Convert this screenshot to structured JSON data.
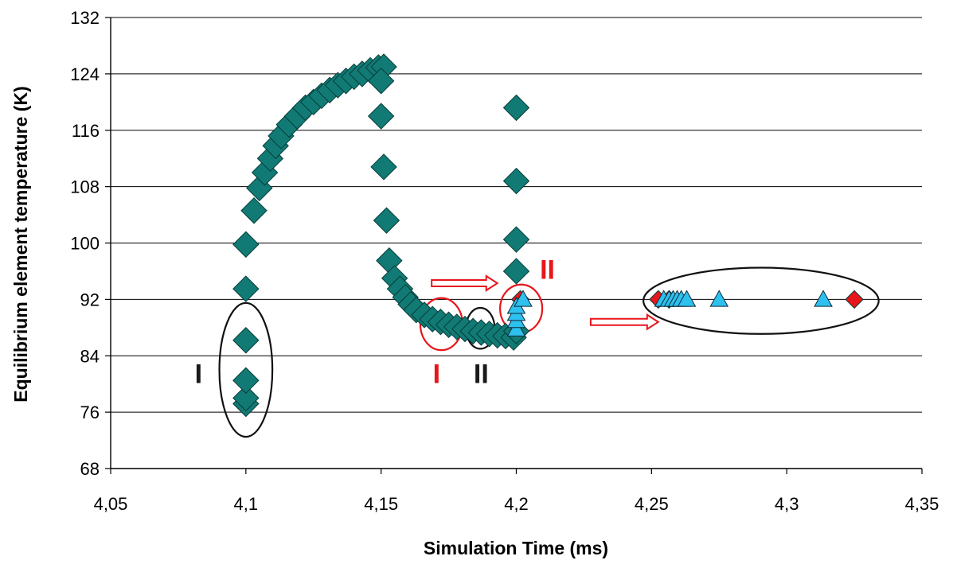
{
  "chart_data": {
    "type": "scatter",
    "title": "",
    "xlabel": "Simulation Time (ms)",
    "ylabel": "Equilibrium element temperature (K)",
    "xlim": [
      4.05,
      4.35
    ],
    "ylim": [
      68,
      132
    ],
    "x_ticks": [
      4.05,
      4.1,
      4.15,
      4.2,
      4.25,
      4.3,
      4.35
    ],
    "x_tick_labels": [
      "4,05",
      "4,1",
      "4,15",
      "4,2",
      "4,25",
      "4,3",
      "4,35"
    ],
    "y_ticks": [
      68,
      76,
      84,
      92,
      100,
      108,
      116,
      124,
      132
    ],
    "y_tick_labels": [
      "68",
      "76",
      "84",
      "92",
      "100",
      "108",
      "116",
      "124",
      "132"
    ],
    "grid": true,
    "legend": "none",
    "series": [
      {
        "marker": "diamond",
        "color": "#117a74",
        "points": [
          [
            4.1,
            77.2
          ],
          [
            4.1,
            78.0
          ],
          [
            4.1,
            80.5
          ],
          [
            4.1,
            86.2
          ],
          [
            4.1,
            93.5
          ],
          [
            4.1,
            99.8
          ],
          [
            4.103,
            104.6
          ],
          [
            4.105,
            107.8
          ],
          [
            4.107,
            110.0
          ],
          [
            4.109,
            112.0
          ],
          [
            4.111,
            113.8
          ],
          [
            4.113,
            115.2
          ],
          [
            4.116,
            116.8
          ],
          [
            4.119,
            118.0
          ],
          [
            4.122,
            119.2
          ],
          [
            4.125,
            120.0
          ],
          [
            4.128,
            120.9
          ],
          [
            4.131,
            121.7
          ],
          [
            4.134,
            122.4
          ],
          [
            4.137,
            123.0
          ],
          [
            4.14,
            123.6
          ],
          [
            4.143,
            124.0
          ],
          [
            4.146,
            124.5
          ],
          [
            4.149,
            124.9
          ],
          [
            4.151,
            125.0
          ],
          [
            4.15,
            123.0
          ],
          [
            4.15,
            118.0
          ],
          [
            4.151,
            110.8
          ],
          [
            4.152,
            103.2
          ],
          [
            4.153,
            97.5
          ],
          [
            4.155,
            95.0
          ],
          [
            4.157,
            93.5
          ],
          [
            4.159,
            92.3
          ],
          [
            4.161,
            91.3
          ],
          [
            4.163,
            90.5
          ],
          [
            4.166,
            89.8
          ],
          [
            4.169,
            89.2
          ],
          [
            4.172,
            88.8
          ],
          [
            4.175,
            88.4
          ],
          [
            4.178,
            88.1
          ],
          [
            4.181,
            87.8
          ],
          [
            4.184,
            87.5
          ],
          [
            4.187,
            87.3
          ],
          [
            4.19,
            87.1
          ],
          [
            4.193,
            86.9
          ],
          [
            4.196,
            86.8
          ],
          [
            4.199,
            86.6
          ],
          [
            4.2,
            87.5
          ],
          [
            4.2,
            96.0
          ],
          [
            4.2,
            100.5
          ],
          [
            4.2,
            108.8
          ],
          [
            4.2,
            119.2
          ]
        ]
      },
      {
        "marker": "diamond",
        "color": "#e8161b",
        "points": [
          [
            4.2015,
            92.0
          ],
          [
            4.2525,
            92.0
          ],
          [
            4.2565,
            92.0
          ],
          [
            4.325,
            92.0
          ]
        ]
      },
      {
        "marker": "triangle",
        "color": "#2ec0ee",
        "points": [
          [
            4.2,
            87.8
          ],
          [
            4.2,
            89.0
          ],
          [
            4.2,
            90.0
          ],
          [
            4.2,
            91.0
          ],
          [
            4.2025,
            92.0
          ],
          [
            4.2545,
            92.0
          ],
          [
            4.2565,
            92.0
          ],
          [
            4.258,
            92.0
          ],
          [
            4.2595,
            92.0
          ],
          [
            4.261,
            92.0
          ],
          [
            4.263,
            92.0
          ],
          [
            4.275,
            92.0
          ],
          [
            4.3135,
            92.0
          ]
        ]
      }
    ],
    "annotations": [
      {
        "text": "I",
        "color": "#1a1a1a",
        "x": 4.0825,
        "y": 81.5
      },
      {
        "text": "I",
        "color": "#e8161b",
        "x": 4.1705,
        "y": 81.5
      },
      {
        "text": "II",
        "color": "#1a1a1a",
        "x": 4.187,
        "y": 81.5
      },
      {
        "text": "II",
        "color": "#e8161b",
        "x": 4.2115,
        "y": 96.3
      }
    ],
    "ellipses": [
      {
        "color": "#111111",
        "cx": 4.1,
        "cy": 82.0,
        "rx": 0.0098,
        "ry": 9.5
      },
      {
        "color": "#e8161b",
        "cx": 4.1723,
        "cy": 88.5,
        "rx": 0.0078,
        "ry": 3.7
      },
      {
        "color": "#111111",
        "cx": 4.1867,
        "cy": 87.9,
        "rx": 0.0053,
        "ry": 2.9
      },
      {
        "color": "#e8161b",
        "cx": 4.2018,
        "cy": 90.7,
        "rx": 0.0078,
        "ry": 3.4
      },
      {
        "color": "#111111",
        "cx": 4.2905,
        "cy": 91.8,
        "rx": 0.0435,
        "ry": 4.7
      }
    ],
    "arrows": [
      {
        "color": "#e8161b",
        "x1": 4.1687,
        "y1": 94.3,
        "x2": 4.193,
        "y2": 94.3
      },
      {
        "color": "#e8161b",
        "x1": 4.2275,
        "y1": 88.8,
        "x2": 4.2525,
        "y2": 88.8
      }
    ]
  }
}
